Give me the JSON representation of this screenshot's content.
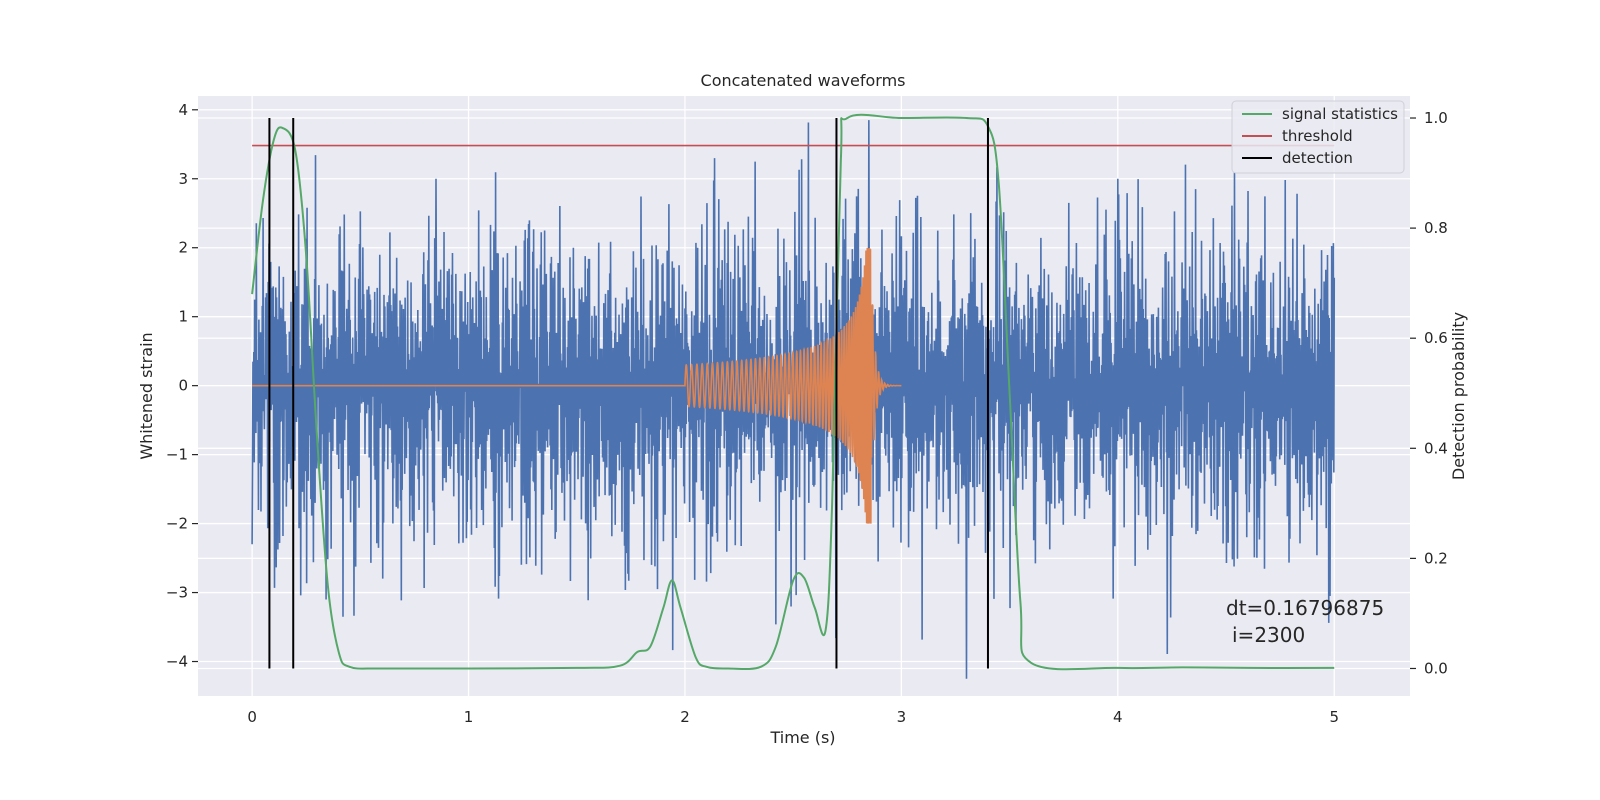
{
  "chart_data": {
    "type": "line",
    "title": "Concatenated waveforms",
    "xlabel": "Time (s)",
    "ylabel": "Whitened strain",
    "ylabel_right": "Detection probability",
    "xlim": [
      -0.25,
      5.35
    ],
    "ylim": [
      -4.5,
      4.2
    ],
    "ylim_right": [
      -0.05,
      1.04
    ],
    "xticks": [
      0,
      1,
      2,
      3,
      4,
      5
    ],
    "yticks": [
      -4,
      -3,
      -2,
      -1,
      0,
      1,
      2,
      3,
      4
    ],
    "yticks_right": [
      0.0,
      0.2,
      0.4,
      0.6,
      0.8,
      1.0
    ],
    "grid": true,
    "legend": {
      "placement": "top-right",
      "entries": [
        {
          "name": "signal statistics",
          "color": "#55a868"
        },
        {
          "name": "threshold",
          "color": "#c44e52"
        },
        {
          "name": "detection",
          "color": "#000000"
        }
      ]
    },
    "noise": {
      "color": "#4c72b0",
      "x_range": [
        0,
        5
      ],
      "samples": 2560,
      "typical_amplitude": 2.2,
      "extremes": [
        {
          "x": 0.0,
          "y": -2.3
        },
        {
          "x": 0.85,
          "y": 3.0
        },
        {
          "x": 0.42,
          "y": -3.35
        },
        {
          "x": 2.85,
          "y": 3.85
        },
        {
          "x": 3.3,
          "y": -4.25
        },
        {
          "x": 4.0,
          "y": 3.0
        },
        {
          "x": 4.98,
          "y": -3.05
        }
      ]
    },
    "injected_signal": {
      "color": "#dd8452",
      "start": 2.0,
      "merger": 2.86,
      "start_amplitude": 0.3,
      "peak_amplitude": 2.0,
      "peak_negative": -1.9
    },
    "signal_statistics": {
      "color": "#55a868",
      "axis": "right",
      "x": [
        0.0,
        0.05,
        0.1,
        0.14,
        0.2,
        0.25,
        0.3,
        0.35,
        0.4,
        0.45,
        0.6,
        1.0,
        1.5,
        1.7,
        1.78,
        1.84,
        1.9,
        1.94,
        1.98,
        2.05,
        2.1,
        2.2,
        2.35,
        2.42,
        2.5,
        2.55,
        2.6,
        2.65,
        2.68,
        2.72,
        2.75,
        3.0,
        3.3,
        3.4,
        3.45,
        3.5,
        3.55,
        3.6,
        4.0,
        4.3,
        4.6,
        5.0
      ],
      "y": [
        0.68,
        0.85,
        0.96,
        0.982,
        0.94,
        0.75,
        0.42,
        0.15,
        0.03,
        0.003,
        0.0,
        0.0,
        0.001,
        0.005,
        0.03,
        0.04,
        0.11,
        0.16,
        0.11,
        0.02,
        0.003,
        0.0,
        0.003,
        0.04,
        0.16,
        0.165,
        0.11,
        0.07,
        0.3,
        0.92,
        1.0,
        1.0,
        1.0,
        0.985,
        0.88,
        0.5,
        0.12,
        0.01,
        0.001,
        0.002,
        0.001,
        0.001
      ]
    },
    "threshold": {
      "color": "#c44e52",
      "axis": "right",
      "value": 0.95,
      "x_range": [
        0,
        5
      ]
    },
    "detections": {
      "color": "#000000",
      "axis": "right",
      "x": [
        0.08,
        0.19,
        2.7,
        3.4
      ],
      "y_range": [
        0.0,
        1.0
      ]
    },
    "annotation": {
      "line1": "dt=0.16796875",
      "line2": "i=2300"
    }
  }
}
